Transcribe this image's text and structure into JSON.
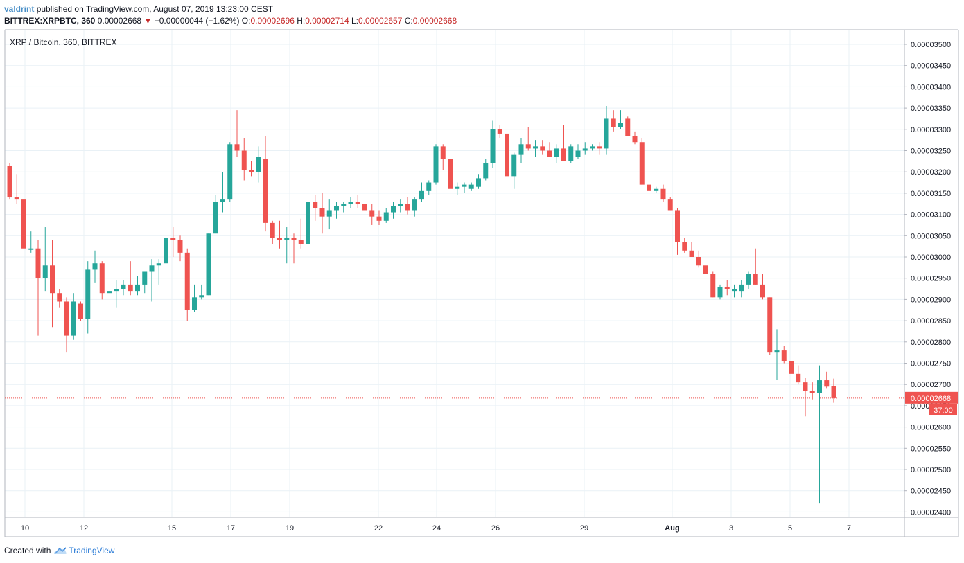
{
  "header": {
    "username": "valdrint",
    "published_text": "published on TradingView.com, August 07, 2019 13:23:00 CEST",
    "symbol_line": "BITTREX:XRPBTC, 360",
    "last_price": "0.00002668",
    "change_text": "−0.00000044 (−1.62%)",
    "o_label": "O:",
    "o_value": "0.00002696",
    "h_label": "H:",
    "h_value": "0.00002714",
    "l_label": "L:",
    "l_value": "0.00002657",
    "c_label": "C:",
    "c_value": "0.00002668",
    "down_arrow_icon": "triangle-down-icon"
  },
  "footer": {
    "created_with": "Created with",
    "brand": "TradingView",
    "logo_icon": "tradingview-cloud-icon"
  },
  "chart_data": {
    "type": "candlestick",
    "title": "XRP / Bitcoin, 360, BITTREX",
    "ylim": [
      2.4e-05,
      3.5e-05
    ],
    "y_ticks": [
      "0.00003500",
      "0.00003450",
      "0.00003400",
      "0.00003350",
      "0.00003300",
      "0.00003250",
      "0.00003200",
      "0.00003150",
      "0.00003100",
      "0.00003050",
      "0.00003000",
      "0.00002950",
      "0.00002900",
      "0.00002850",
      "0.00002800",
      "0.00002750",
      "0.00002700",
      "0.00002650",
      "0.00002600",
      "0.00002550",
      "0.00002500",
      "0.00002450",
      "0.00002400"
    ],
    "x_ticks": [
      "10",
      "12",
      "15",
      "17",
      "19",
      "22",
      "24",
      "26",
      "29",
      "Aug",
      "3",
      "5",
      "7"
    ],
    "last_price_label": "0.00002668",
    "countdown_label": "37:00",
    "colors": {
      "up": "#26a69a",
      "down": "#ef5350",
      "grid": "#e9f1f6",
      "price_line": "#ef5350"
    },
    "grid": true,
    "candles": [
      [
        3.215e-05,
        3.22e-05,
        3.135e-05,
        3.14e-05
      ],
      [
        3.14e-05,
        3.195e-05,
        3.125e-05,
        3.135e-05
      ],
      [
        3.135e-05,
        3.14e-05,
        3.01e-05,
        3.02e-05
      ],
      [
        3.02e-05,
        3.06e-05,
        3.01e-05,
        3.02e-05
      ],
      [
        3.02e-05,
        3.04e-05,
        2.815e-05,
        2.95e-05
      ],
      [
        2.95e-05,
        3.07e-05,
        2.92e-05,
        2.98e-05
      ],
      [
        2.98e-05,
        3.04e-05,
        2.835e-05,
        2.915e-05
      ],
      [
        2.915e-05,
        2.925e-05,
        2.88e-05,
        2.895e-05
      ],
      [
        2.895e-05,
        2.905e-05,
        2.775e-05,
        2.815e-05
      ],
      [
        2.815e-05,
        2.915e-05,
        2.805e-05,
        2.895e-05
      ],
      [
        2.89e-05,
        2.895e-05,
        2.85e-05,
        2.855e-05
      ],
      [
        2.855e-05,
        2.99e-05,
        2.82e-05,
        2.97e-05
      ],
      [
        2.97e-05,
        3.015e-05,
        2.94e-05,
        2.985e-05
      ],
      [
        2.985e-05,
        2.99e-05,
        2.9e-05,
        2.915e-05
      ],
      [
        2.915e-05,
        2.93e-05,
        2.875e-05,
        2.92e-05
      ],
      [
        2.92e-05,
        2.945e-05,
        2.88e-05,
        2.925e-05
      ],
      [
        2.925e-05,
        2.945e-05,
        2.91e-05,
        2.935e-05
      ],
      [
        2.935e-05,
        2.99e-05,
        2.91e-05,
        2.92e-05
      ],
      [
        2.92e-05,
        2.955e-05,
        2.91e-05,
        2.935e-05
      ],
      [
        2.935e-05,
        2.965e-05,
        2.915e-05,
        2.965e-05
      ],
      [
        2.965e-05,
        2.995e-05,
        2.895e-05,
        2.98e-05
      ],
      [
        2.98e-05,
        2.995e-05,
        2.935e-05,
        2.985e-05
      ],
      [
        2.985e-05,
        3.1e-05,
        2.985e-05,
        3.045e-05
      ],
      [
        3.045e-05,
        3.07e-05,
        3e-05,
        3.04e-05
      ],
      [
        3.04e-05,
        3.05e-05,
        2.99e-05,
        3.01e-05
      ],
      [
        3.01e-05,
        3.02e-05,
        2.85e-05,
        2.875e-05
      ],
      [
        2.875e-05,
        2.935e-05,
        2.87e-05,
        2.905e-05
      ],
      [
        2.905e-05,
        2.935e-05,
        2.9e-05,
        2.91e-05
      ],
      [
        2.91e-05,
        3.055e-05,
        2.91e-05,
        3.055e-05
      ],
      [
        3.055e-05,
        3.145e-05,
        3.055e-05,
        3.13e-05
      ],
      [
        3.13e-05,
        3.2e-05,
        3.105e-05,
        3.135e-05
      ],
      [
        3.135e-05,
        3.27e-05,
        3.13e-05,
        3.265e-05
      ],
      [
        3.265e-05,
        3.345e-05,
        3.235e-05,
        3.25e-05
      ],
      [
        3.25e-05,
        3.28e-05,
        3.18e-05,
        3.205e-05
      ],
      [
        3.205e-05,
        3.225e-05,
        3.19e-05,
        3.2e-05
      ],
      [
        3.2e-05,
        3.26e-05,
        3.175e-05,
        3.235e-05
      ],
      [
        3.23e-05,
        3.285e-05,
        3.06e-05,
        3.08e-05
      ],
      [
        3.08e-05,
        3.085e-05,
        3.03e-05,
        3.045e-05
      ],
      [
        3.045e-05,
        3.085e-05,
        3.02e-05,
        3.04e-05
      ],
      [
        3.04e-05,
        3.07e-05,
        2.985e-05,
        3.045e-05
      ],
      [
        3.045e-05,
        3.055e-05,
        2.985e-05,
        3.04e-05
      ],
      [
        3.04e-05,
        3.09e-05,
        3.02e-05,
        3.03e-05
      ],
      [
        3.03e-05,
        3.15e-05,
        3.025e-05,
        3.13e-05
      ],
      [
        3.13e-05,
        3.145e-05,
        3.085e-05,
        3.115e-05
      ],
      [
        3.115e-05,
        3.15e-05,
        3.055e-05,
        3.095e-05
      ],
      [
        3.095e-05,
        3.135e-05,
        3.065e-05,
        3.11e-05
      ],
      [
        3.11e-05,
        3.13e-05,
        3.09e-05,
        3.12e-05
      ],
      [
        3.12e-05,
        3.13e-05,
        3.105e-05,
        3.125e-05
      ],
      [
        3.125e-05,
        3.14e-05,
        3.115e-05,
        3.13e-05
      ],
      [
        3.13e-05,
        3.145e-05,
        3.115e-05,
        3.125e-05
      ],
      [
        3.125e-05,
        3.13e-05,
        3.09e-05,
        3.11e-05
      ],
      [
        3.11e-05,
        3.125e-05,
        3.075e-05,
        3.095e-05
      ],
      [
        3.095e-05,
        3.11e-05,
        3.075e-05,
        3.085e-05
      ],
      [
        3.085e-05,
        3.115e-05,
        3.08e-05,
        3.105e-05
      ],
      [
        3.105e-05,
        3.13e-05,
        3.09e-05,
        3.12e-05
      ],
      [
        3.12e-05,
        3.135e-05,
        3.105e-05,
        3.125e-05
      ],
      [
        3.125e-05,
        3.14e-05,
        3.1e-05,
        3.11e-05
      ],
      [
        3.11e-05,
        3.14e-05,
        3.095e-05,
        3.135e-05
      ],
      [
        3.135e-05,
        3.175e-05,
        3.13e-05,
        3.155e-05
      ],
      [
        3.155e-05,
        3.18e-05,
        3.145e-05,
        3.175e-05
      ],
      [
        3.175e-05,
        3.265e-05,
        3.17e-05,
        3.26e-05
      ],
      [
        3.26e-05,
        3.265e-05,
        3.205e-05,
        3.23e-05
      ],
      [
        3.23e-05,
        3.24e-05,
        3.155e-05,
        3.16e-05
      ],
      [
        3.16e-05,
        3.175e-05,
        3.145e-05,
        3.165e-05
      ],
      [
        3.165e-05,
        3.175e-05,
        3.15e-05,
        3.17e-05
      ],
      [
        3.16e-05,
        3.175e-05,
        3.155e-05,
        3.17e-05
      ],
      [
        3.165e-05,
        3.195e-05,
        3.16e-05,
        3.185e-05
      ],
      [
        3.185e-05,
        3.23e-05,
        3.18e-05,
        3.22e-05
      ],
      [
        3.22e-05,
        3.32e-05,
        3.21e-05,
        3.3e-05
      ],
      [
        3.3e-05,
        3.31e-05,
        3.28e-05,
        3.29e-05
      ],
      [
        3.29e-05,
        3.3e-05,
        3.175e-05,
        3.19e-05
      ],
      [
        3.19e-05,
        3.245e-05,
        3.16e-05,
        3.24e-05
      ],
      [
        3.24e-05,
        3.28e-05,
        3.22e-05,
        3.265e-05
      ],
      [
        3.265e-05,
        3.305e-05,
        3.25e-05,
        3.255e-05
      ],
      [
        3.255e-05,
        3.275e-05,
        3.235e-05,
        3.26e-05
      ],
      [
        3.26e-05,
        3.275e-05,
        3.24e-05,
        3.25e-05
      ],
      [
        3.25e-05,
        3.27e-05,
        3.235e-05,
        3.235e-05
      ],
      [
        3.235e-05,
        3.265e-05,
        3.22e-05,
        3.255e-05
      ],
      [
        3.255e-05,
        3.31e-05,
        3.225e-05,
        3.225e-05
      ],
      [
        3.225e-05,
        3.265e-05,
        3.22e-05,
        3.26e-05
      ],
      [
        3.235e-05,
        3.265e-05,
        3.23e-05,
        3.25e-05
      ],
      [
        3.25e-05,
        3.27e-05,
        3.24e-05,
        3.255e-05
      ],
      [
        3.255e-05,
        3.265e-05,
        3.25e-05,
        3.26e-05
      ],
      [
        3.26e-05,
        3.27e-05,
        3.24e-05,
        3.255e-05
      ],
      [
        3.255e-05,
        3.355e-05,
        3.24e-05,
        3.325e-05
      ],
      [
        3.325e-05,
        3.345e-05,
        3.295e-05,
        3.305e-05
      ],
      [
        3.305e-05,
        3.345e-05,
        3.3e-05,
        3.315e-05
      ],
      [
        3.325e-05,
        3.33e-05,
        3.285e-05,
        3.285e-05
      ],
      [
        3.285e-05,
        3.295e-05,
        3.265e-05,
        3.27e-05
      ],
      [
        3.27e-05,
        3.28e-05,
        3.17e-05,
        3.17e-05
      ],
      [
        3.17e-05,
        3.175e-05,
        3.15e-05,
        3.155e-05
      ],
      [
        3.155e-05,
        3.165e-05,
        3.15e-05,
        3.16e-05
      ],
      [
        3.16e-05,
        3.17e-05,
        3.13e-05,
        3.135e-05
      ],
      [
        3.135e-05,
        3.14e-05,
        3.11e-05,
        3.11e-05
      ],
      [
        3.11e-05,
        3.115e-05,
        3.005e-05,
        3.035e-05
      ],
      [
        3.035e-05,
        3.045e-05,
        3.01e-05,
        3.015e-05
      ],
      [
        3.015e-05,
        3.035e-05,
        3e-05,
        3e-05
      ],
      [
        3e-05,
        3.015e-05,
        2.975e-05,
        2.98e-05
      ],
      [
        2.98e-05,
        2.995e-05,
        2.94e-05,
        2.96e-05
      ],
      [
        2.96e-05,
        2.965e-05,
        2.905e-05,
        2.905e-05
      ],
      [
        2.905e-05,
        2.935e-05,
        2.9e-05,
        2.93e-05
      ],
      [
        2.93e-05,
        2.945e-05,
        2.91e-05,
        2.925e-05
      ],
      [
        2.92e-05,
        2.935e-05,
        2.905e-05,
        2.925e-05
      ],
      [
        2.92e-05,
        2.945e-05,
        2.905e-05,
        2.935e-05
      ],
      [
        2.935e-05,
        2.965e-05,
        2.925e-05,
        2.96e-05
      ],
      [
        2.96e-05,
        3.02e-05,
        2.935e-05,
        2.935e-05
      ],
      [
        2.935e-05,
        2.96e-05,
        2.9e-05,
        2.905e-05
      ],
      [
        2.905e-05,
        2.905e-05,
        2.77e-05,
        2.775e-05
      ],
      [
        2.775e-05,
        2.83e-05,
        2.71e-05,
        2.78e-05
      ],
      [
        2.78e-05,
        2.79e-05,
        2.75e-05,
        2.755e-05
      ],
      [
        2.755e-05,
        2.76e-05,
        2.72e-05,
        2.725e-05
      ],
      [
        2.725e-05,
        2.745e-05,
        2.7e-05,
        2.705e-05
      ],
      [
        2.705e-05,
        2.715e-05,
        2.625e-05,
        2.685e-05
      ],
      [
        2.685e-05,
        2.705e-05,
        2.665e-05,
        2.68e-05
      ],
      [
        2.68e-05,
        2.745e-05,
        2.42e-05,
        2.71e-05
      ],
      [
        2.71e-05,
        2.73e-05,
        2.69e-05,
        2.695e-05
      ],
      [
        2.696e-05,
        2.714e-05,
        2.657e-05,
        2.668e-05
      ]
    ]
  }
}
